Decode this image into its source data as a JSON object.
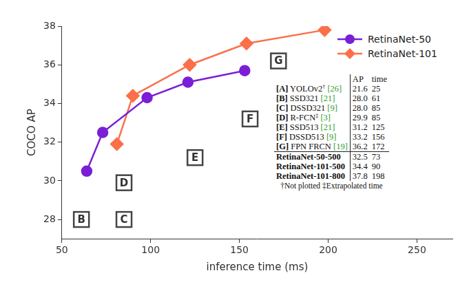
{
  "chart_data": {
    "type": "line",
    "x_label": "inference time (ms)",
    "y_label": "COCO AP",
    "xlim": [
      50,
      270
    ],
    "xticks": [
      50,
      100,
      150,
      200,
      250
    ],
    "ylim": [
      27,
      38
    ],
    "yticks": [
      28,
      30,
      32,
      34,
      36,
      38
    ],
    "grid": false,
    "legend": "upper right",
    "series": [
      {
        "name": "RetinaNet-50",
        "color": "#7a1fd6",
        "marker": "circle",
        "line_style": "solid",
        "x": [
          64,
          73,
          98,
          121,
          153
        ],
        "values": [
          30.5,
          32.5,
          34.3,
          35.1,
          35.7
        ]
      },
      {
        "name": "RetinaNet-101",
        "color": "#fb7049",
        "marker": "diamond",
        "line_style": "solid",
        "x": [
          81,
          90,
          122,
          154,
          198
        ],
        "values": [
          31.9,
          34.4,
          36.0,
          37.1,
          37.8
        ]
      }
    ],
    "annotations": [
      {
        "text": "B",
        "x": 61,
        "y": 28.0
      },
      {
        "text": "C",
        "x": 85,
        "y": 28.0
      },
      {
        "text": "D",
        "x": 85,
        "y": 29.9
      },
      {
        "text": "E",
        "x": 125,
        "y": 31.2
      },
      {
        "text": "F",
        "x": 156,
        "y": 33.2
      },
      {
        "text": "G",
        "x": 172,
        "y": 36.2
      }
    ],
    "table": {
      "header": [
        "AP",
        "time"
      ],
      "rows": [
        {
          "key": "[A]",
          "method": "YOLOv2",
          "mark": "†",
          "ref": "[26]",
          "ap": "21.6",
          "time": "25"
        },
        {
          "key": "[B]",
          "method": "SSD321",
          "ref": "[21]",
          "ap": "28.0",
          "time": "61"
        },
        {
          "key": "[C]",
          "method": "DSSD321",
          "ref": "[9]",
          "ap": "28.0",
          "time": "85"
        },
        {
          "key": "[D]",
          "method": "R-FCN",
          "mark": "‡",
          "ref": "[3]",
          "ap": "29.9",
          "time": "85"
        },
        {
          "key": "[E]",
          "method": "SSD513",
          "ref": "[21]",
          "ap": "31.2",
          "time": "125"
        },
        {
          "key": "[F]",
          "method": "DSSD513",
          "ref": "[9]",
          "ap": "33.2",
          "time": "156"
        },
        {
          "key": "[G]",
          "method": "FPN FRCN",
          "ref": "[19]",
          "ap": "36.2",
          "time": "172"
        },
        {
          "method": "RetinaNet-50-500",
          "ap": "32.5",
          "time": "73"
        },
        {
          "method": "RetinaNet-101-500",
          "ap": "34.4",
          "time": "90"
        },
        {
          "method": "RetinaNet-101-800",
          "ap": "37.8",
          "time": "198"
        }
      ],
      "footnotes": [
        "†Not plotted",
        "‡Extrapolated time"
      ]
    }
  }
}
